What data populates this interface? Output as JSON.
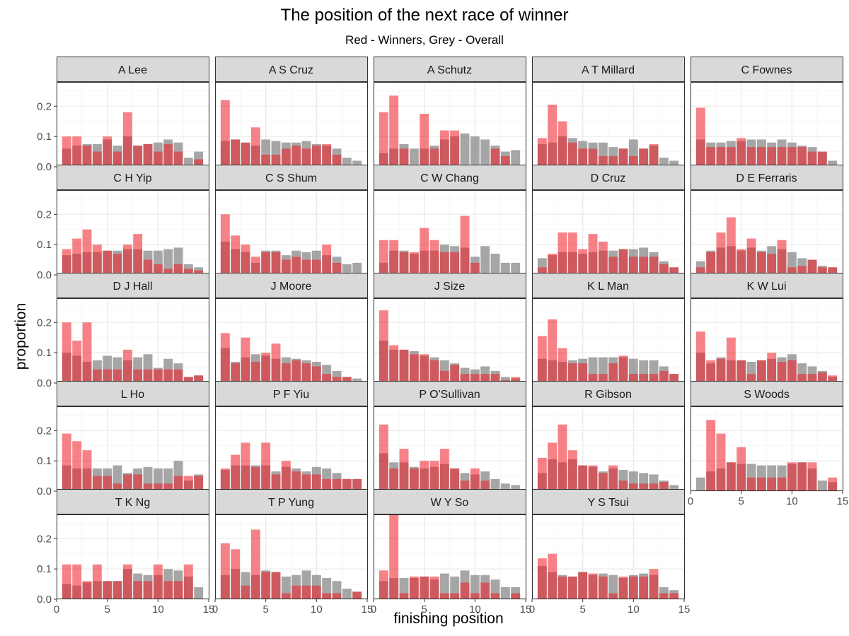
{
  "title": "The position of the next race of winner",
  "subtitle": "Red - Winners, Grey - Overall",
  "colors": {
    "winners": "#ee1c25",
    "overall": "#808080",
    "strip": "#d9d9d9",
    "grid": "#ebebeb"
  },
  "chart_data": {
    "type": "bar",
    "facet": "wrap",
    "x": [
      1,
      2,
      3,
      4,
      5,
      6,
      7,
      8,
      9,
      10,
      11,
      12,
      13,
      14
    ],
    "xlabel": "finishing position",
    "ylabel": "proportion",
    "xlim": [
      0,
      15
    ],
    "ylim": [
      0,
      0.28
    ],
    "xticks": [
      0,
      5,
      10,
      15
    ],
    "yticks": [
      0.0,
      0.1,
      0.2
    ],
    "ytick_labels": [
      "0.0",
      "0.1",
      "0.2"
    ],
    "grid": true,
    "series_names": [
      "Winners",
      "Overall"
    ],
    "panels": [
      {
        "name": "A Lee",
        "winners": [
          0.1,
          0.1,
          0.07,
          0.05,
          0.1,
          0.05,
          0.18,
          0.07,
          0.075,
          0.05,
          0.075,
          0.05,
          0.0,
          0.025
        ],
        "overall": [
          0.06,
          0.07,
          0.075,
          0.075,
          0.09,
          0.07,
          0.1,
          0.07,
          0.075,
          0.08,
          0.09,
          0.08,
          0.03,
          0.05
        ]
      },
      {
        "name": "A S Cruz",
        "winners": [
          0.22,
          0.09,
          0.08,
          0.13,
          0.04,
          0.04,
          0.06,
          0.07,
          0.06,
          0.07,
          0.075,
          0.04,
          0.0,
          0.0
        ],
        "overall": [
          0.085,
          0.09,
          0.08,
          0.07,
          0.09,
          0.085,
          0.08,
          0.08,
          0.085,
          0.075,
          0.07,
          0.06,
          0.03,
          0.02
        ]
      },
      {
        "name": "A Schutz",
        "winners": [
          0.18,
          0.235,
          0.06,
          0.0,
          0.175,
          0.06,
          0.12,
          0.12,
          0.0,
          0.0,
          0.0,
          0.06,
          0.035,
          0.0
        ],
        "overall": [
          0.045,
          0.06,
          0.075,
          0.06,
          0.06,
          0.07,
          0.09,
          0.1,
          0.11,
          0.1,
          0.09,
          0.07,
          0.05,
          0.055
        ]
      },
      {
        "name": "A T Millard",
        "winners": [
          0.095,
          0.205,
          0.15,
          0.08,
          0.06,
          0.06,
          0.035,
          0.035,
          0.06,
          0.035,
          0.06,
          0.075,
          0.0,
          0.0
        ],
        "overall": [
          0.075,
          0.08,
          0.1,
          0.095,
          0.085,
          0.08,
          0.08,
          0.065,
          0.06,
          0.09,
          0.06,
          0.07,
          0.03,
          0.02
        ]
      },
      {
        "name": "C Fownes",
        "winners": [
          0.195,
          0.065,
          0.065,
          0.065,
          0.095,
          0.065,
          0.065,
          0.065,
          0.065,
          0.065,
          0.065,
          0.05,
          0.05,
          0.0
        ],
        "overall": [
          0.09,
          0.08,
          0.08,
          0.085,
          0.085,
          0.09,
          0.09,
          0.08,
          0.09,
          0.08,
          0.07,
          0.065,
          0.05,
          0.02
        ]
      },
      {
        "name": "C H Yip",
        "winners": [
          0.085,
          0.12,
          0.15,
          0.1,
          0.08,
          0.07,
          0.1,
          0.135,
          0.05,
          0.035,
          0.02,
          0.035,
          0.02,
          0.015
        ],
        "overall": [
          0.065,
          0.07,
          0.075,
          0.075,
          0.08,
          0.08,
          0.085,
          0.085,
          0.08,
          0.08,
          0.085,
          0.09,
          0.035,
          0.025
        ]
      },
      {
        "name": "C S Shum",
        "winners": [
          0.2,
          0.13,
          0.1,
          0.06,
          0.075,
          0.075,
          0.05,
          0.06,
          0.05,
          0.05,
          0.1,
          0.04,
          0.0,
          0.0
        ],
        "overall": [
          0.11,
          0.085,
          0.075,
          0.04,
          0.08,
          0.08,
          0.065,
          0.08,
          0.075,
          0.08,
          0.065,
          0.06,
          0.035,
          0.04
        ]
      },
      {
        "name": "C W Chang",
        "winners": [
          0.115,
          0.115,
          0.075,
          0.075,
          0.155,
          0.115,
          0.075,
          0.075,
          0.195,
          0.04,
          0.0,
          0.0,
          0.0,
          0.0
        ],
        "overall": [
          0.04,
          0.08,
          0.08,
          0.07,
          0.08,
          0.08,
          0.1,
          0.095,
          0.09,
          0.06,
          0.095,
          0.07,
          0.04,
          0.04
        ]
      },
      {
        "name": "D Cruz",
        "winners": [
          0.025,
          0.07,
          0.14,
          0.14,
          0.085,
          0.135,
          0.11,
          0.06,
          0.085,
          0.06,
          0.06,
          0.06,
          0.035,
          0.025
        ],
        "overall": [
          0.055,
          0.065,
          0.075,
          0.075,
          0.07,
          0.075,
          0.08,
          0.08,
          0.085,
          0.085,
          0.09,
          0.075,
          0.045,
          0.025
        ]
      },
      {
        "name": "D E Ferraris",
        "winners": [
          0.025,
          0.075,
          0.14,
          0.19,
          0.085,
          0.12,
          0.075,
          0.07,
          0.115,
          0.025,
          0.03,
          0.05,
          0.025,
          0.025
        ],
        "overall": [
          0.045,
          0.08,
          0.09,
          0.095,
          0.08,
          0.09,
          0.08,
          0.095,
          0.085,
          0.075,
          0.055,
          0.05,
          0.03,
          0.025
        ]
      },
      {
        "name": "D J Hall",
        "winners": [
          0.2,
          0.14,
          0.2,
          0.045,
          0.045,
          0.045,
          0.11,
          0.045,
          0.045,
          0.045,
          0.045,
          0.045,
          0.02,
          0.025
        ],
        "overall": [
          0.1,
          0.09,
          0.07,
          0.075,
          0.09,
          0.085,
          0.075,
          0.085,
          0.095,
          0.05,
          0.08,
          0.065,
          0.02,
          0.025
        ]
      },
      {
        "name": "J Moore",
        "winners": [
          0.165,
          0.065,
          0.15,
          0.07,
          0.1,
          0.13,
          0.065,
          0.075,
          0.065,
          0.055,
          0.03,
          0.02,
          0.02,
          0.0
        ],
        "overall": [
          0.115,
          0.07,
          0.085,
          0.095,
          0.09,
          0.08,
          0.085,
          0.08,
          0.075,
          0.07,
          0.06,
          0.04,
          0.02,
          0.015
        ]
      },
      {
        "name": "J Size",
        "winners": [
          0.24,
          0.125,
          0.11,
          0.095,
          0.095,
          0.075,
          0.04,
          0.06,
          0.03,
          0.03,
          0.03,
          0.03,
          0.01,
          0.02
        ],
        "overall": [
          0.14,
          0.11,
          0.11,
          0.105,
          0.09,
          0.085,
          0.075,
          0.065,
          0.05,
          0.045,
          0.055,
          0.04,
          0.02,
          0.015
        ]
      },
      {
        "name": "K L Man",
        "winners": [
          0.155,
          0.21,
          0.115,
          0.065,
          0.065,
          0.03,
          0.03,
          0.065,
          0.09,
          0.03,
          0.03,
          0.03,
          0.04,
          0.03
        ],
        "overall": [
          0.08,
          0.075,
          0.07,
          0.075,
          0.08,
          0.085,
          0.085,
          0.085,
          0.085,
          0.08,
          0.075,
          0.075,
          0.055,
          0.03
        ]
      },
      {
        "name": "K W Lui",
        "winners": [
          0.17,
          0.075,
          0.08,
          0.15,
          0.075,
          0.03,
          0.075,
          0.1,
          0.07,
          0.075,
          0.03,
          0.03,
          0.035,
          0.025
        ],
        "overall": [
          0.1,
          0.065,
          0.085,
          0.075,
          0.075,
          0.07,
          0.075,
          0.08,
          0.085,
          0.095,
          0.065,
          0.055,
          0.04,
          0.02
        ]
      },
      {
        "name": "L Ho",
        "winners": [
          0.19,
          0.165,
          0.135,
          0.05,
          0.05,
          0.025,
          0.055,
          0.055,
          0.025,
          0.025,
          0.025,
          0.05,
          0.05,
          0.05
        ],
        "overall": [
          0.085,
          0.075,
          0.075,
          0.075,
          0.075,
          0.085,
          0.06,
          0.075,
          0.08,
          0.075,
          0.075,
          0.1,
          0.035,
          0.055
        ]
      },
      {
        "name": "P F Yiu",
        "winners": [
          0.075,
          0.12,
          0.16,
          0.08,
          0.16,
          0.055,
          0.1,
          0.065,
          0.055,
          0.055,
          0.04,
          0.04,
          0.04,
          0.04
        ],
        "overall": [
          0.07,
          0.085,
          0.085,
          0.085,
          0.085,
          0.065,
          0.08,
          0.075,
          0.065,
          0.08,
          0.075,
          0.06,
          0.04,
          0.04
        ]
      },
      {
        "name": "P O'Sullivan",
        "winners": [
          0.22,
          0.075,
          0.14,
          0.075,
          0.1,
          0.1,
          0.14,
          0.075,
          0.035,
          0.075,
          0.035,
          0.0,
          0.0,
          0.0
        ],
        "overall": [
          0.125,
          0.095,
          0.095,
          0.08,
          0.075,
          0.08,
          0.09,
          0.075,
          0.06,
          0.055,
          0.065,
          0.04,
          0.025,
          0.02
        ]
      },
      {
        "name": "R Gibson",
        "winners": [
          0.11,
          0.16,
          0.22,
          0.135,
          0.085,
          0.085,
          0.06,
          0.085,
          0.035,
          0.025,
          0.025,
          0.025,
          0.03,
          0.0
        ],
        "overall": [
          0.06,
          0.105,
          0.095,
          0.105,
          0.085,
          0.08,
          0.065,
          0.075,
          0.07,
          0.065,
          0.06,
          0.055,
          0.035,
          0.02
        ]
      },
      {
        "name": "S Woods",
        "winners": [
          0.0,
          0.235,
          0.19,
          0.095,
          0.145,
          0.045,
          0.045,
          0.045,
          0.045,
          0.095,
          0.095,
          0.095,
          0.0,
          0.045
        ],
        "overall": [
          0.045,
          0.065,
          0.075,
          0.095,
          0.09,
          0.09,
          0.085,
          0.085,
          0.085,
          0.09,
          0.095,
          0.075,
          0.035,
          0.03
        ]
      },
      {
        "name": "T K Ng",
        "winners": [
          0.115,
          0.115,
          0.06,
          0.115,
          0.06,
          0.06,
          0.115,
          0.06,
          0.06,
          0.115,
          0.06,
          0.06,
          0.115,
          0.0
        ],
        "overall": [
          0.05,
          0.045,
          0.055,
          0.06,
          0.06,
          0.06,
          0.1,
          0.085,
          0.08,
          0.08,
          0.1,
          0.095,
          0.075,
          0.04
        ]
      },
      {
        "name": "T P Yung",
        "winners": [
          0.185,
          0.165,
          0.045,
          0.23,
          0.09,
          0.09,
          0.02,
          0.045,
          0.045,
          0.045,
          0.02,
          0.02,
          0.0,
          0.025
        ],
        "overall": [
          0.08,
          0.1,
          0.09,
          0.08,
          0.095,
          0.09,
          0.075,
          0.08,
          0.095,
          0.08,
          0.07,
          0.06,
          0.035,
          0.025
        ]
      },
      {
        "name": "W Y So",
        "winners": [
          0.095,
          0.28,
          0.02,
          0.075,
          0.075,
          0.075,
          0.02,
          0.02,
          0.055,
          0.02,
          0.055,
          0.02,
          0.0,
          0.02
        ],
        "overall": [
          0.06,
          0.07,
          0.07,
          0.07,
          0.075,
          0.065,
          0.085,
          0.075,
          0.095,
          0.08,
          0.08,
          0.065,
          0.04,
          0.04
        ]
      },
      {
        "name": "Y S Tsui",
        "winners": [
          0.135,
          0.15,
          0.075,
          0.075,
          0.09,
          0.085,
          0.075,
          0.02,
          0.075,
          0.075,
          0.075,
          0.1,
          0.02,
          0.02
        ],
        "overall": [
          0.11,
          0.09,
          0.08,
          0.075,
          0.09,
          0.08,
          0.085,
          0.08,
          0.07,
          0.08,
          0.085,
          0.08,
          0.04,
          0.03
        ]
      }
    ]
  }
}
